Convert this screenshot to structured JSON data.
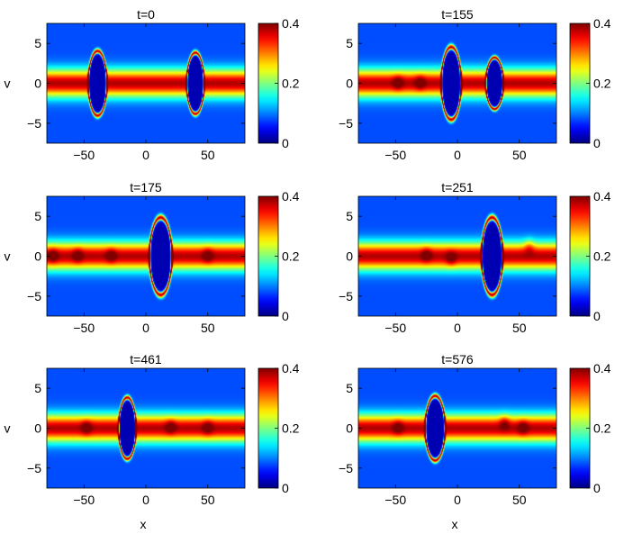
{
  "chart_data": {
    "type": "heatmap",
    "xlabel": "x",
    "ylabel": "v",
    "xlim": [
      -80,
      80
    ],
    "ylim": [
      -7.5,
      7.5
    ],
    "xticks": [
      -50,
      0,
      50
    ],
    "xtick_labels": [
      "−50",
      "0",
      "50"
    ],
    "yticks": [
      -5,
      0,
      5
    ],
    "ytick_labels": [
      "−5",
      "0",
      "5"
    ],
    "colorbar": {
      "range": [
        0,
        0.4
      ],
      "ticks": [
        0,
        0.2,
        0.4
      ],
      "tick_labels": [
        "0",
        "0.2",
        "0.4"
      ],
      "colormap": "jet"
    },
    "background_value": 0.08,
    "band": {
      "peak_value": 0.38,
      "half_width_v": 1.7
    },
    "panels": [
      {
        "title": "t=0",
        "holes": [
          {
            "x": -39,
            "a": 7.5,
            "b": 4.0
          },
          {
            "x": 40,
            "a": 7.0,
            "b": 3.8
          }
        ],
        "blobs": []
      },
      {
        "title": "t=155",
        "holes": [
          {
            "x": -5,
            "a": 8.0,
            "b": 4.5
          },
          {
            "x": 30,
            "a": 7.0,
            "b": 3.2
          }
        ],
        "blobs": [
          {
            "x": -48,
            "v": 0.1
          },
          {
            "x": -30,
            "v": 0.1
          }
        ]
      },
      {
        "title": "t=175",
        "holes": [
          {
            "x": 12,
            "a": 9.0,
            "b": 4.8
          }
        ],
        "blobs": [
          {
            "x": -75,
            "v": 0.1
          },
          {
            "x": -55,
            "v": 0.1
          },
          {
            "x": -28,
            "v": 0.1
          },
          {
            "x": 50,
            "v": 0.1
          }
        ]
      },
      {
        "title": "t=251",
        "holes": [
          {
            "x": 28,
            "a": 8.5,
            "b": 4.8
          }
        ],
        "blobs": [
          {
            "x": -25,
            "v": 0.2
          },
          {
            "x": -5,
            "v": -0.3
          },
          {
            "x": 58,
            "v": 1.3
          }
        ]
      },
      {
        "title": "t=461",
        "holes": [
          {
            "x": -15,
            "a": 7.0,
            "b": 3.8
          }
        ],
        "blobs": [
          {
            "x": -48,
            "v": 0.1
          },
          {
            "x": 20,
            "v": 0.2
          },
          {
            "x": 50,
            "v": 0.1
          }
        ]
      },
      {
        "title": "t=576",
        "holes": [
          {
            "x": -18,
            "a": 8.0,
            "b": 4.0
          }
        ],
        "blobs": [
          {
            "x": -48,
            "v": 0.1
          },
          {
            "x": 38,
            "v": 0.8
          },
          {
            "x": 53,
            "v": 0.1
          }
        ]
      }
    ]
  }
}
